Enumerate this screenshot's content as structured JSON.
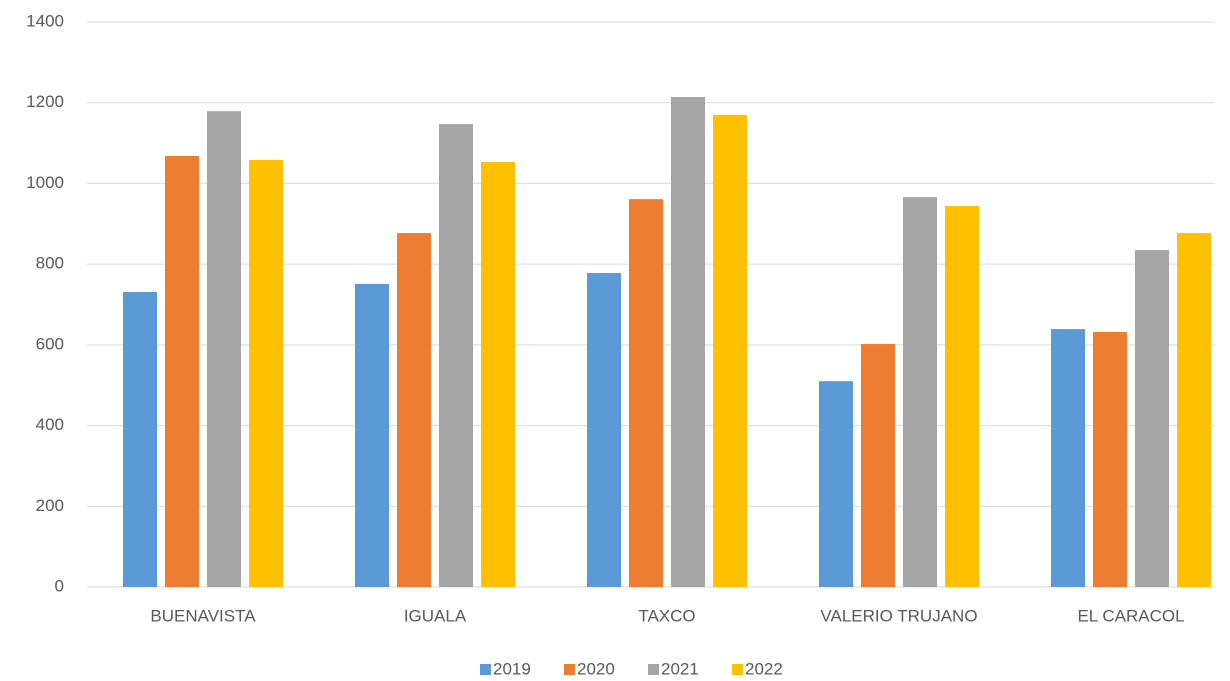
{
  "chart_data": {
    "type": "bar",
    "categories": [
      "BUENAVISTA",
      "IGUALA",
      "TAXCO",
      "VALERIO TRUJANO",
      "EL CARACOL"
    ],
    "series": [
      {
        "name": "2019",
        "color": "#5b9bd5",
        "values": [
          731,
          751,
          778,
          510,
          639
        ]
      },
      {
        "name": "2020",
        "color": "#ed7d31",
        "values": [
          1068,
          877,
          961,
          602,
          632
        ]
      },
      {
        "name": "2021",
        "color": "#a5a5a5",
        "values": [
          1179,
          1147,
          1214,
          966,
          835
        ]
      },
      {
        "name": "2022",
        "color": "#ffc000",
        "values": [
          1058,
          1053,
          1170,
          944,
          877
        ]
      }
    ],
    "ylim": [
      0,
      1400
    ],
    "yticks": [
      0,
      200,
      400,
      600,
      800,
      1000,
      1200,
      1400
    ],
    "grid": true,
    "legend": "bottom"
  }
}
